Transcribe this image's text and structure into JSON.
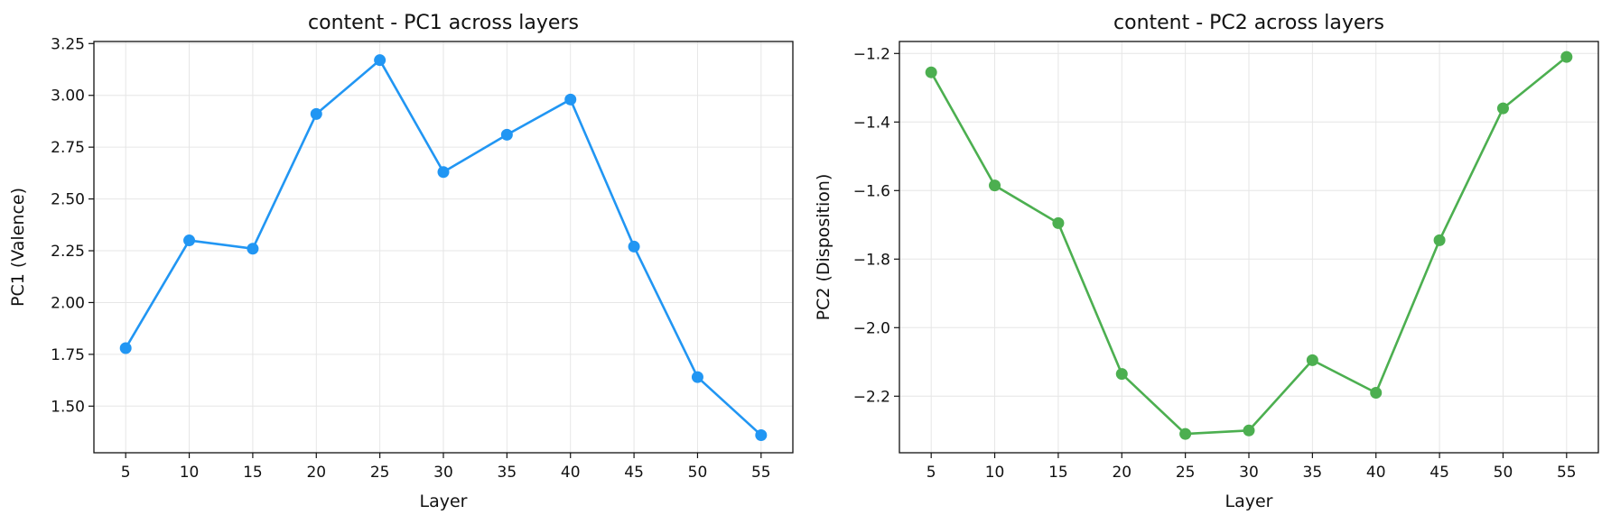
{
  "chart_data": [
    {
      "type": "line",
      "title": "content - PC1 across layers",
      "xlabel": "Layer",
      "ylabel": "PC1 (Valence)",
      "x": [
        5,
        10,
        15,
        20,
        25,
        30,
        35,
        40,
        45,
        50,
        55
      ],
      "series": [
        {
          "values": [
            1.78,
            2.3,
            2.26,
            2.91,
            3.17,
            2.63,
            2.81,
            2.98,
            2.27,
            1.64,
            1.36
          ]
        }
      ],
      "xticks": [
        5,
        10,
        15,
        20,
        25,
        30,
        35,
        40,
        45,
        50,
        55
      ],
      "yticks": [
        1.5,
        1.75,
        2.0,
        2.25,
        2.5,
        2.75,
        3.0,
        3.25
      ],
      "xlim": [
        2.5,
        57.5
      ],
      "ylim": [
        1.275,
        3.26
      ],
      "grid": true,
      "color": "#2196f3"
    },
    {
      "type": "line",
      "title": "content - PC2 across layers",
      "xlabel": "Layer",
      "ylabel": "PC2 (Disposition)",
      "x": [
        5,
        10,
        15,
        20,
        25,
        30,
        35,
        40,
        45,
        50,
        55
      ],
      "series": [
        {
          "values": [
            -1.255,
            -1.585,
            -1.695,
            -2.135,
            -2.31,
            -2.3,
            -2.095,
            -2.19,
            -1.745,
            -1.36,
            -1.21
          ]
        }
      ],
      "xticks": [
        5,
        10,
        15,
        20,
        25,
        30,
        35,
        40,
        45,
        50,
        55
      ],
      "yticks": [
        -2.2,
        -2.0,
        -1.8,
        -1.6,
        -1.4,
        -1.2
      ],
      "xlim": [
        2.5,
        57.5
      ],
      "ylim": [
        -2.365,
        -1.165
      ],
      "grid": true,
      "color": "#4caf50"
    }
  ]
}
